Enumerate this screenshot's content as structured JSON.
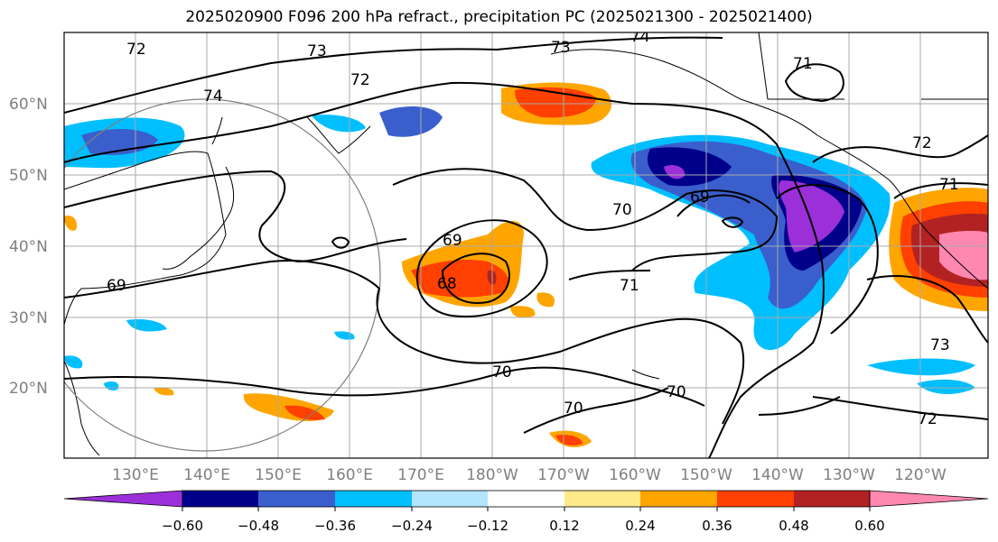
{
  "title": "2025020900 F096 200 hPa refract., precipitation PC (2025021300 - 2025021400)",
  "map": {
    "lon_labels": [
      "130°E",
      "140°E",
      "150°E",
      "160°E",
      "170°E",
      "180°W",
      "170°W",
      "160°W",
      "150°W",
      "140°W",
      "130°W",
      "120°W"
    ],
    "lat_labels": [
      "60°N",
      "50°N",
      "40°N",
      "30°N",
      "20°N"
    ],
    "contour_labels": [
      "73",
      "73",
      "74",
      "71",
      "72",
      "74",
      "72",
      "72",
      "71",
      "70",
      "69",
      "70",
      "69",
      "68",
      "71",
      "70",
      "70",
      "73",
      "72",
      "69"
    ]
  },
  "colorbar": {
    "colors": [
      "#9b30d9",
      "#00008b",
      "#3a5fcd",
      "#00bfff",
      "#b3e5ff",
      "#ffffff",
      "#ffea8a",
      "#ffa500",
      "#ff4000",
      "#b22222",
      "#ff88b0"
    ],
    "tick_labels": [
      "−0.60",
      "−0.48",
      "−0.36",
      "−0.24",
      "−0.12",
      "0.12",
      "0.24",
      "0.36",
      "0.48",
      "0.60"
    ]
  }
}
